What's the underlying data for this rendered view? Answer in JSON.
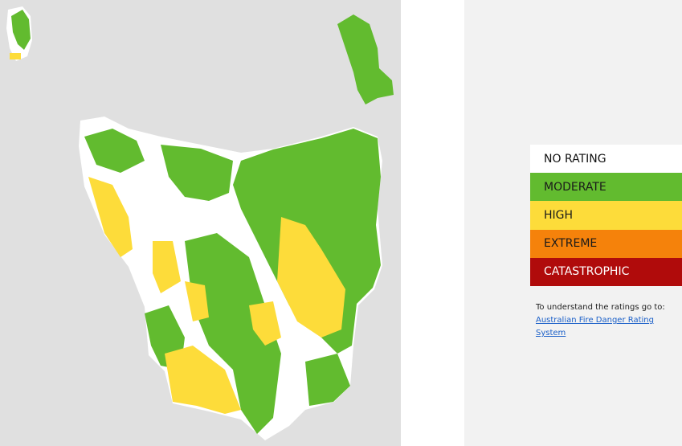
{
  "legend": {
    "items": [
      {
        "label": "NO RATING",
        "color": "#ffffff",
        "text_color": "#111111"
      },
      {
        "label": "MODERATE",
        "color": "#62bb2f",
        "text_color": "#1a1a1a"
      },
      {
        "label": "HIGH",
        "color": "#fddc3a",
        "text_color": "#1a1a1a"
      },
      {
        "label": "EXTREME",
        "color": "#f5820b",
        "text_color": "#1a1a1a"
      },
      {
        "label": "CATASTROPHIC",
        "color": "#b00b0b",
        "text_color": "#ffffff"
      }
    ]
  },
  "note": {
    "text": "To understand the ratings go to:",
    "link": "Australian Fire Danger Rating System"
  }
}
